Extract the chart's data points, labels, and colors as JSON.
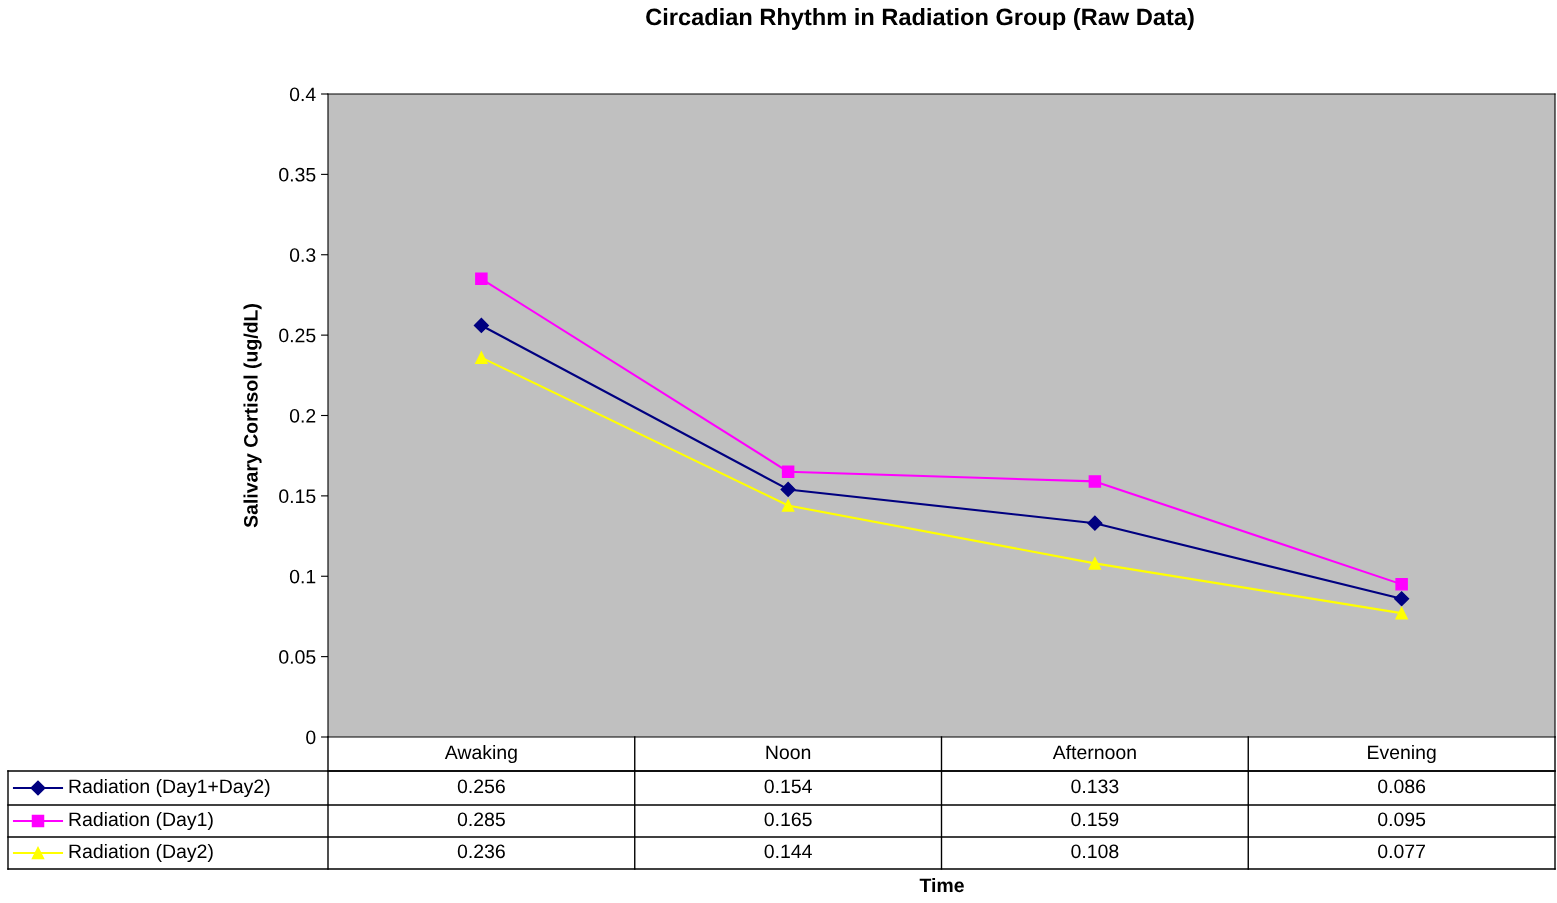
{
  "chart_data": {
    "type": "line",
    "title": "Circadian Rhythm in Radiation Group (Raw Data)",
    "annotations": [
      "Time"
    ],
    "ylabel": "Salivary Cortisol (ug/dL)",
    "categories": [
      "Awaking",
      "Noon",
      "Afternoon",
      "Evening"
    ],
    "series": [
      {
        "name": "Radiation (Day1+Day2)",
        "color": "#000080",
        "marker": "diamond",
        "values": [
          0.256,
          0.154,
          0.133,
          0.086
        ]
      },
      {
        "name": "Radiation (Day1)",
        "color": "#ff00ff",
        "marker": "square",
        "values": [
          0.285,
          0.165,
          0.159,
          0.095
        ]
      },
      {
        "name": "Radiation (Day2)",
        "color": "#ffff00",
        "marker": "triangle",
        "values": [
          0.236,
          0.144,
          0.108,
          0.077
        ]
      }
    ],
    "ylim": [
      0,
      0.4
    ],
    "yticks": [
      0,
      0.05,
      0.1,
      0.15,
      0.2,
      0.25,
      0.3,
      0.35,
      0.4
    ],
    "grid": false,
    "legend": "bottom",
    "data_labels": true,
    "line_style": "solid"
  }
}
